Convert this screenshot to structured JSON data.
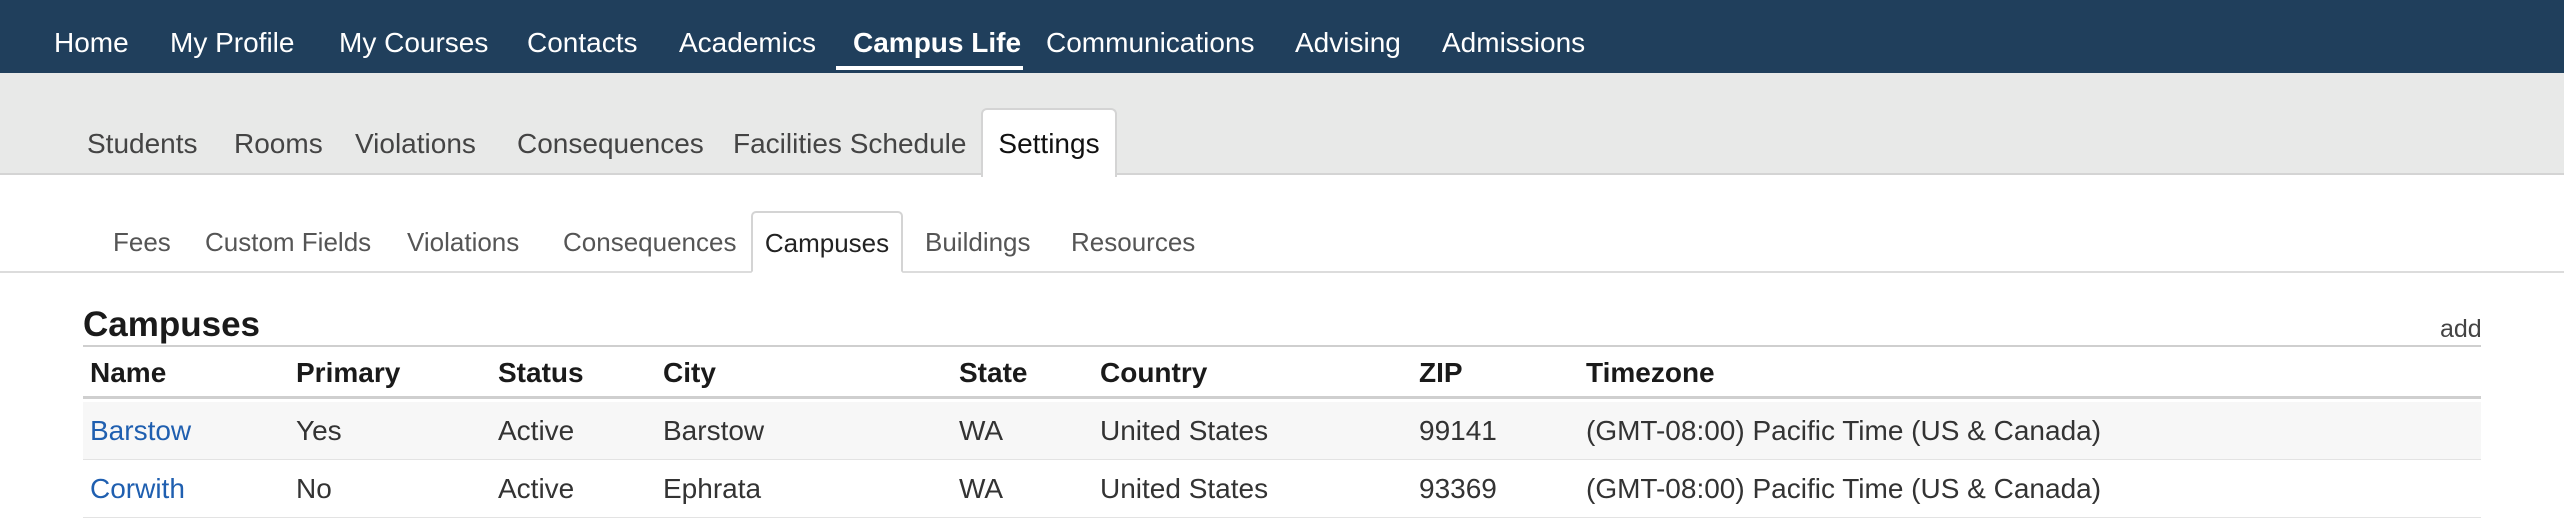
{
  "top_nav": {
    "items": [
      "Home",
      "My Profile",
      "My Courses",
      "Contacts",
      "Academics",
      "Campus Life",
      "Communications",
      "Advising",
      "Admissions"
    ],
    "active": "Campus Life"
  },
  "sub_nav": {
    "items": [
      "Students",
      "Rooms",
      "Violations",
      "Consequences",
      "Facilities Schedule"
    ],
    "active": "Settings"
  },
  "tert_nav": {
    "items": [
      "Fees",
      "Custom Fields",
      "Violations",
      "Consequences",
      "Buildings",
      "Resources"
    ],
    "active": "Campuses"
  },
  "section": {
    "title": "Campuses",
    "add_label": "add"
  },
  "table": {
    "columns": [
      "Name",
      "Primary",
      "Status",
      "City",
      "State",
      "Country",
      "ZIP",
      "Timezone"
    ],
    "rows": [
      [
        "Barstow",
        "Yes",
        "Active",
        "Barstow",
        "WA",
        "United States",
        "99141",
        "(GMT-08:00) Pacific Time (US & Canada)"
      ],
      [
        "Corwith",
        "No",
        "Active",
        "Ephrata",
        "WA",
        "United States",
        "93369",
        "(GMT-08:00) Pacific Time (US & Canada)"
      ]
    ]
  },
  "colors": {
    "nav_bg": "#203f5c",
    "subnav_bg": "#e8e9e8",
    "link": "#1f5fb0"
  }
}
